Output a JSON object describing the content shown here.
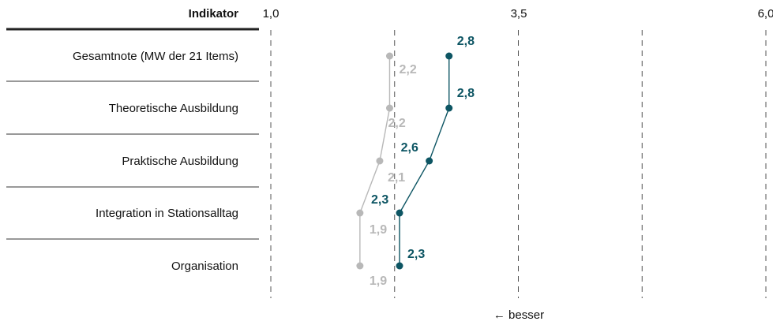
{
  "chart_data": {
    "type": "line",
    "header": "Indikator",
    "categories": [
      "Gesamtnote (MW der 21 Items)",
      "Theoretische Ausbildung",
      "Praktische Ausbildung",
      "Integration in Stationsalltag",
      "Organisation"
    ],
    "x_ticks": [
      "1,0",
      "3,5",
      "6,0"
    ],
    "xlim": [
      1.0,
      6.0
    ],
    "orientation": "horizontal",
    "footnote": "← besser",
    "grid": "dashed vertical",
    "series": [
      {
        "color": "#0d5563",
        "values": [
          2.8,
          2.8,
          2.6,
          2.3,
          2.3
        ],
        "labels": [
          "2,8",
          "2,8",
          "2,6",
          "2,3",
          "2,3"
        ]
      },
      {
        "color": "#b8b8b8",
        "values": [
          2.2,
          2.2,
          2.1,
          1.9,
          1.9
        ],
        "labels": [
          "2,2",
          "2,2",
          "2,1",
          "1,9",
          "1,9"
        ]
      }
    ]
  }
}
